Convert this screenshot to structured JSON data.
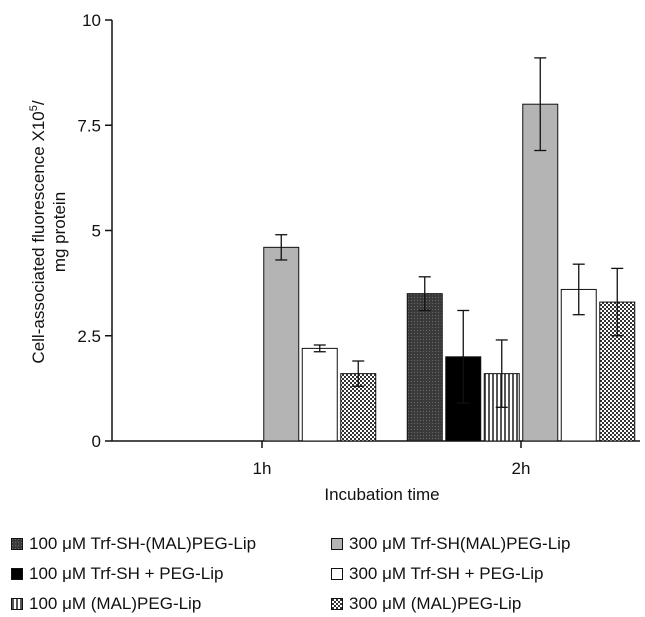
{
  "chart_data": {
    "type": "bar",
    "categories": [
      "1h",
      "2h"
    ],
    "xlabel": "Incubation time",
    "ylabel_line1": "Cell-associated fluorescence X10",
    "ylabel_sup": "5",
    "ylabel_line1_tail": "/",
    "ylabel_line2": "mg protein",
    "ylim": [
      0,
      10
    ],
    "yticks": [
      "0",
      "2.5",
      "5",
      "7.5",
      "10"
    ],
    "ytick_values": [
      0,
      2.5,
      5,
      7.5,
      10
    ],
    "grid": false,
    "legend_position": "bottom",
    "series": [
      {
        "name": "100 μM Trf-SH-(MAL)PEG-Lip",
        "values": [
          null,
          3.5
        ],
        "errors": [
          null,
          0.4
        ],
        "pattern": "dark-grid"
      },
      {
        "name": "100 μM Trf-SH + PEG-Lip",
        "values": [
          null,
          2.0
        ],
        "errors": [
          null,
          1.1
        ],
        "pattern": "solid-black"
      },
      {
        "name": "100 μM (MAL)PEG-Lip",
        "values": [
          null,
          1.6
        ],
        "errors": [
          null,
          0.8
        ],
        "pattern": "vertical-lines"
      },
      {
        "name": "300 μM Trf-SH(MAL)PEG-Lip",
        "values": [
          4.6,
          8.0
        ],
        "errors": [
          0.3,
          1.1
        ],
        "pattern": "solid-gray"
      },
      {
        "name": "300 μM Trf-SH + PEG-Lip",
        "values": [
          2.2,
          3.6
        ],
        "errors": [
          0.08,
          0.6
        ],
        "pattern": "solid-white"
      },
      {
        "name": "300 μM (MAL)PEG-Lip",
        "values": [
          1.6,
          3.3
        ],
        "errors": [
          0.3,
          0.8
        ],
        "pattern": "checker"
      }
    ],
    "colors": {
      "axis": "#111111",
      "gray": "#b4b4b4",
      "black": "#000000",
      "white": "#ffffff"
    }
  }
}
